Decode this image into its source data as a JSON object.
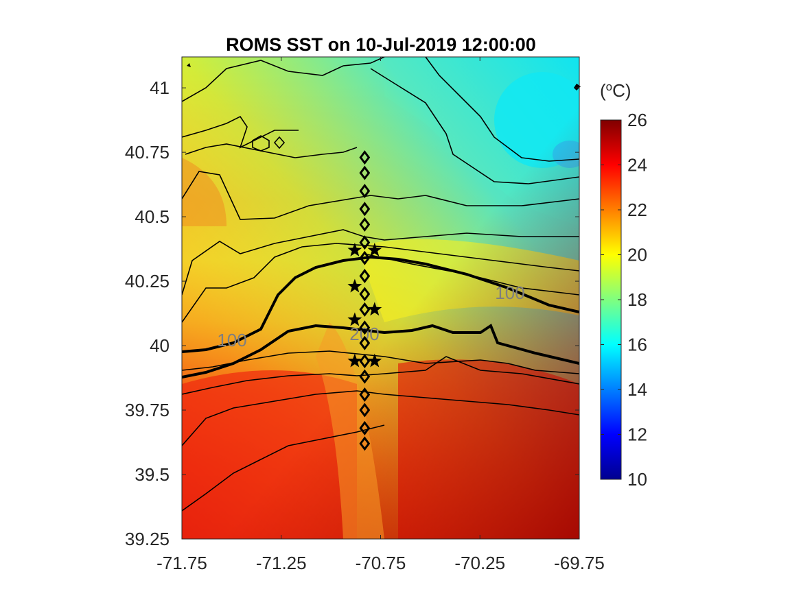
{
  "title": "ROMS SST on 10-Jul-2019 12:00:00",
  "colorbar": {
    "unit_base": "(",
    "unit_sup": "o",
    "unit_rest": "C)",
    "min": 10,
    "max": 26,
    "tick_labels": [
      "26",
      "24",
      "22",
      "20",
      "18",
      "16",
      "14",
      "12",
      "10"
    ],
    "tick_values": [
      26,
      24,
      22,
      20,
      18,
      16,
      14,
      12,
      10
    ],
    "colormap": "jet",
    "colors": [
      "#00008f",
      "#0000ff",
      "#00ffff",
      "#ffff00",
      "#ff0000",
      "#800000"
    ]
  },
  "axes": {
    "x_tick_labels": [
      "-71.75",
      "-71.25",
      "-70.75",
      "-70.25",
      "-69.75"
    ],
    "x_tick_values": [
      -71.75,
      -71.25,
      -70.75,
      -70.25,
      -69.75
    ],
    "y_tick_labels": [
      "41",
      "40.75",
      "40.5",
      "40.25",
      "40",
      "39.75",
      "39.5",
      "39.25"
    ],
    "y_tick_values": [
      41,
      40.75,
      40.5,
      40.25,
      40,
      39.75,
      39.5,
      39.25
    ],
    "xlim": [
      -71.75,
      -69.75
    ],
    "ylim": [
      39.25,
      41.12
    ]
  },
  "chart_data": {
    "type": "heatmap",
    "title": "ROMS SST on 10-Jul-2019 12:00:00",
    "xlabel": "",
    "ylabel": "",
    "xlim": [
      -71.75,
      -69.75
    ],
    "ylim": [
      39.25,
      41.12
    ],
    "color_range": [
      10,
      26
    ],
    "colorbar_unit": "(oC)",
    "bathymetry_contours": [
      {
        "label": "100",
        "label_positions": [
          [
            -71.6,
            40.02
          ],
          [
            -70.1,
            40.2
          ]
        ],
        "bold": true
      },
      {
        "label": "200",
        "label_positions": [
          [
            -70.8,
            40.04
          ]
        ],
        "bold": true
      }
    ],
    "diamond_stations": {
      "lon": -70.83,
      "lat": [
        40.73,
        40.67,
        40.6,
        40.53,
        40.47,
        40.4,
        40.34,
        40.27,
        40.2,
        40.14,
        40.07,
        40.01,
        39.94,
        39.88,
        39.81,
        39.75,
        39.68,
        39.62
      ]
    },
    "star_stations": [
      [
        -70.88,
        40.37
      ],
      [
        -70.78,
        40.37
      ],
      [
        -70.88,
        40.23
      ],
      [
        -70.88,
        40.1
      ],
      [
        -70.78,
        40.14
      ],
      [
        -70.88,
        39.94
      ],
      [
        -70.78,
        39.94
      ]
    ]
  }
}
